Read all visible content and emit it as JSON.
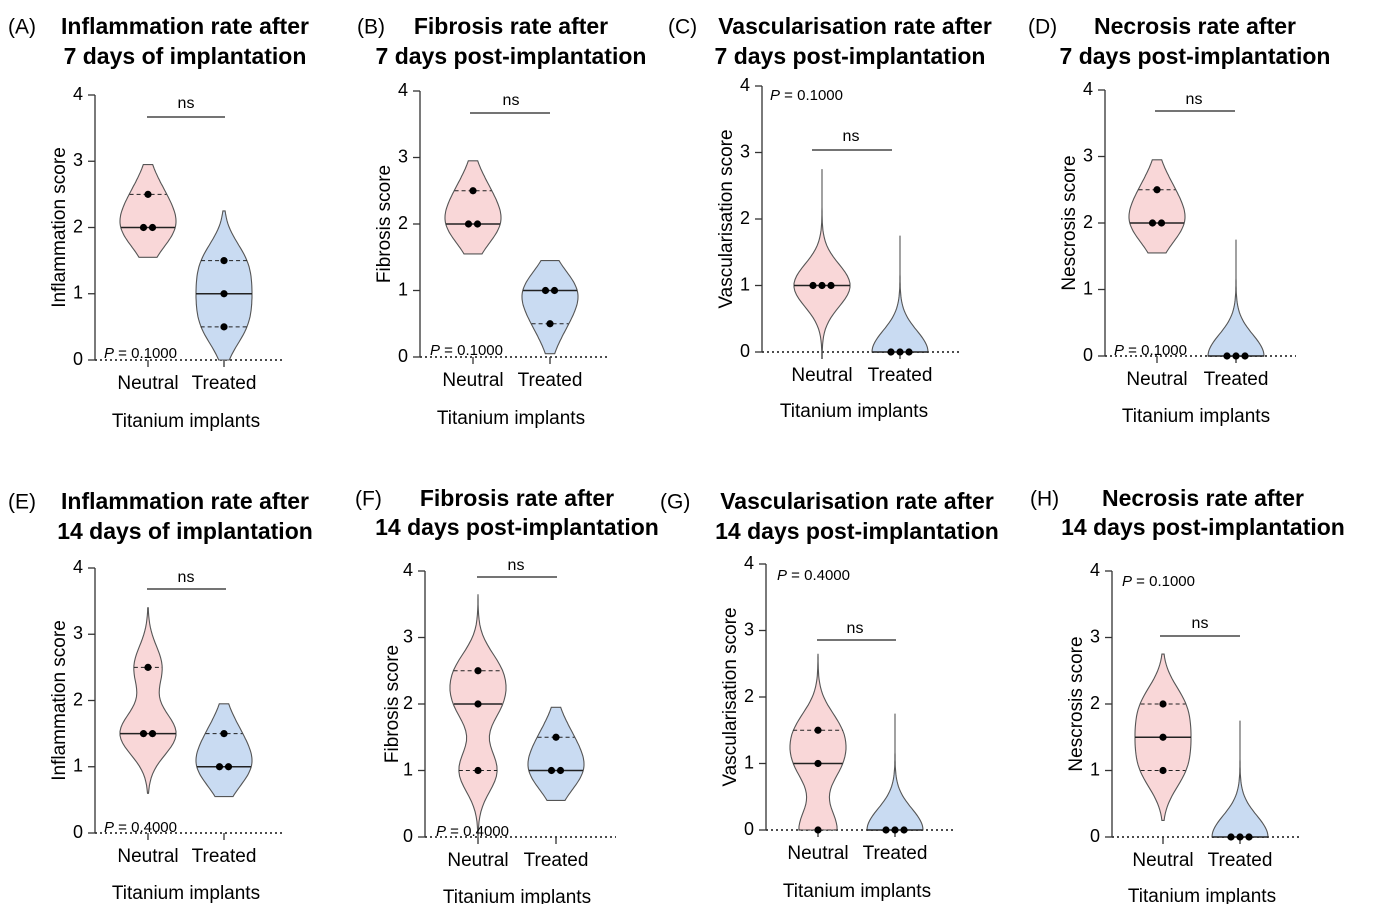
{
  "colors": {
    "neutral": "#f9d7d8",
    "treated": "#c9dbf2",
    "outline": "#555555",
    "axis": "#333333"
  },
  "chart_data": [
    {
      "type": "violin",
      "letter": "(A)",
      "title_lines": [
        "Inflammation rate after",
        "7 days of implantation"
      ],
      "ylabel": "Inflammation score",
      "xlabel": "Titanium implants",
      "ylim": [
        0,
        4
      ],
      "yticks": [
        "0",
        "1",
        "2",
        "3",
        "4"
      ],
      "categories": [
        "Neutral",
        "Treated"
      ],
      "p_text": "P = 0.1000",
      "ns_text": "ns",
      "series": [
        {
          "category": "Neutral",
          "points": [
            2,
            2,
            2.5
          ],
          "median": 2,
          "q1": 2,
          "q3": 2.5,
          "range": [
            1.55,
            2.95
          ]
        },
        {
          "category": "Treated",
          "points": [
            0.5,
            1,
            1.5
          ],
          "median": 1,
          "q1": 0.5,
          "q3": 1.5,
          "range": [
            0,
            2.25
          ]
        }
      ]
    },
    {
      "type": "violin",
      "letter": "(B)",
      "title_lines": [
        "Fibrosis rate after",
        "7 days post-implantation"
      ],
      "ylabel": "Fibrosis score",
      "xlabel": "Titanium implants",
      "ylim": [
        0,
        4
      ],
      "yticks": [
        "0",
        "1",
        "2",
        "3",
        "4"
      ],
      "categories": [
        "Neutral",
        "Treated"
      ],
      "p_text": "P = 0.1000",
      "ns_text": "ns",
      "series": [
        {
          "category": "Neutral",
          "points": [
            2,
            2,
            2.5
          ],
          "median": 2,
          "q1": 2,
          "q3": 2.5,
          "range": [
            1.55,
            2.95
          ]
        },
        {
          "category": "Treated",
          "points": [
            0.5,
            1,
            1
          ],
          "median": 1,
          "q1": 0.5,
          "q3": 1,
          "range": [
            0.05,
            1.45
          ]
        }
      ]
    },
    {
      "type": "violin",
      "letter": "(C)",
      "title_lines": [
        "Vascularisation rate after",
        "7 days post-implantation"
      ],
      "ylabel": "Vascularisation score",
      "xlabel": "Titanium implants",
      "ylim": [
        0,
        4
      ],
      "yticks": [
        "0",
        "1",
        "2",
        "3",
        "4"
      ],
      "categories": [
        "Neutral",
        "Treated"
      ],
      "p_text": "P = 0.1000",
      "ns_text": "ns",
      "series": [
        {
          "category": "Neutral",
          "points": [
            1,
            1,
            1
          ],
          "median": 1,
          "q1": 1,
          "q3": 1,
          "range": [
            0,
            2.75
          ]
        },
        {
          "category": "Treated",
          "points": [
            0,
            0,
            0
          ],
          "median": 0,
          "q1": 0,
          "q3": 0,
          "range": [
            0,
            1.75
          ]
        }
      ]
    },
    {
      "type": "violin",
      "letter": "(D)",
      "title_lines": [
        "Necrosis rate after",
        "7 days post-implantation"
      ],
      "ylabel": "Nescrosis score",
      "xlabel": "Titanium implants",
      "ylim": [
        0,
        4
      ],
      "yticks": [
        "0",
        "1",
        "2",
        "3",
        "4"
      ],
      "categories": [
        "Neutral",
        "Treated"
      ],
      "p_text": "P = 0.1000",
      "ns_text": "ns",
      "series": [
        {
          "category": "Neutral",
          "points": [
            2,
            2,
            2.5
          ],
          "median": 2,
          "q1": 2,
          "q3": 2.5,
          "range": [
            1.55,
            2.95
          ]
        },
        {
          "category": "Treated",
          "points": [
            0,
            0,
            0
          ],
          "median": 0,
          "q1": 0,
          "q3": 0,
          "range": [
            0,
            1.75
          ]
        }
      ]
    },
    {
      "type": "violin",
      "letter": "(E)",
      "title_lines": [
        "Inflammation rate after",
        "14 days of implantation"
      ],
      "ylabel": "Inflammation score",
      "xlabel": "Titanium implants",
      "ylim": [
        0,
        4
      ],
      "yticks": [
        "0",
        "1",
        "2",
        "3",
        "4"
      ],
      "categories": [
        "Neutral",
        "Treated"
      ],
      "p_text": "P = 0.4000",
      "ns_text": "ns",
      "series": [
        {
          "category": "Neutral",
          "points": [
            1.5,
            1.5,
            2.5
          ],
          "median": 1.5,
          "q1": 1.5,
          "q3": 2.5,
          "range": [
            0.6,
            3.4
          ]
        },
        {
          "category": "Treated",
          "points": [
            1,
            1,
            1.5
          ],
          "median": 1,
          "q1": 1,
          "q3": 1.5,
          "range": [
            0.55,
            1.95
          ]
        }
      ]
    },
    {
      "type": "violin",
      "letter": "(F)",
      "title_lines": [
        "Fibrosis rate after",
        "14 days post-implantation"
      ],
      "ylabel": "Fibrosis score",
      "xlabel": "Titanium implants",
      "ylim": [
        0,
        4
      ],
      "yticks": [
        "0",
        "1",
        "2",
        "3",
        "4"
      ],
      "categories": [
        "Neutral",
        "Treated"
      ],
      "p_text": "P = 0.4000",
      "ns_text": "ns",
      "series": [
        {
          "category": "Neutral",
          "points": [
            1,
            2,
            2.5
          ],
          "median": 2,
          "q1": 1,
          "q3": 2.5,
          "range": [
            0,
            3.65
          ]
        },
        {
          "category": "Treated",
          "points": [
            1,
            1,
            1.5
          ],
          "median": 1,
          "q1": 1,
          "q3": 1.5,
          "range": [
            0.55,
            1.95
          ]
        }
      ]
    },
    {
      "type": "violin",
      "letter": "(G)",
      "title_lines": [
        "Vascularisation rate after",
        "14 days post-implantation"
      ],
      "ylabel": "Vascularisation score",
      "xlabel": "Titanium implants",
      "ylim": [
        0,
        4
      ],
      "yticks": [
        "0",
        "1",
        "2",
        "3",
        "4"
      ],
      "categories": [
        "Neutral",
        "Treated"
      ],
      "p_text": "P = 0.4000",
      "ns_text": "ns",
      "series": [
        {
          "category": "Neutral",
          "points": [
            0,
            1,
            1.5
          ],
          "median": 1,
          "q1": 0,
          "q3": 1.5,
          "range": [
            0,
            2.65
          ]
        },
        {
          "category": "Treated",
          "points": [
            0,
            0,
            0
          ],
          "median": 0,
          "q1": 0,
          "q3": 0,
          "range": [
            0,
            1.75
          ]
        }
      ]
    },
    {
      "type": "violin",
      "letter": "(H)",
      "title_lines": [
        "Necrosis rate after",
        "14 days post-implantation"
      ],
      "ylabel": "Nescrosis score",
      "xlabel": "Titanium implants",
      "ylim": [
        0,
        4
      ],
      "yticks": [
        "0",
        "1",
        "2",
        "3",
        "4"
      ],
      "categories": [
        "Neutral",
        "Treated"
      ],
      "p_text": "P = 0.1000",
      "ns_text": "ns",
      "series": [
        {
          "category": "Neutral",
          "points": [
            1,
            1.5,
            2
          ],
          "median": 1.5,
          "q1": 1,
          "q3": 2,
          "range": [
            0.25,
            2.75
          ]
        },
        {
          "category": "Treated",
          "points": [
            0,
            0,
            0
          ],
          "median": 0,
          "q1": 0,
          "q3": 0,
          "range": [
            0,
            1.75
          ]
        }
      ]
    }
  ]
}
